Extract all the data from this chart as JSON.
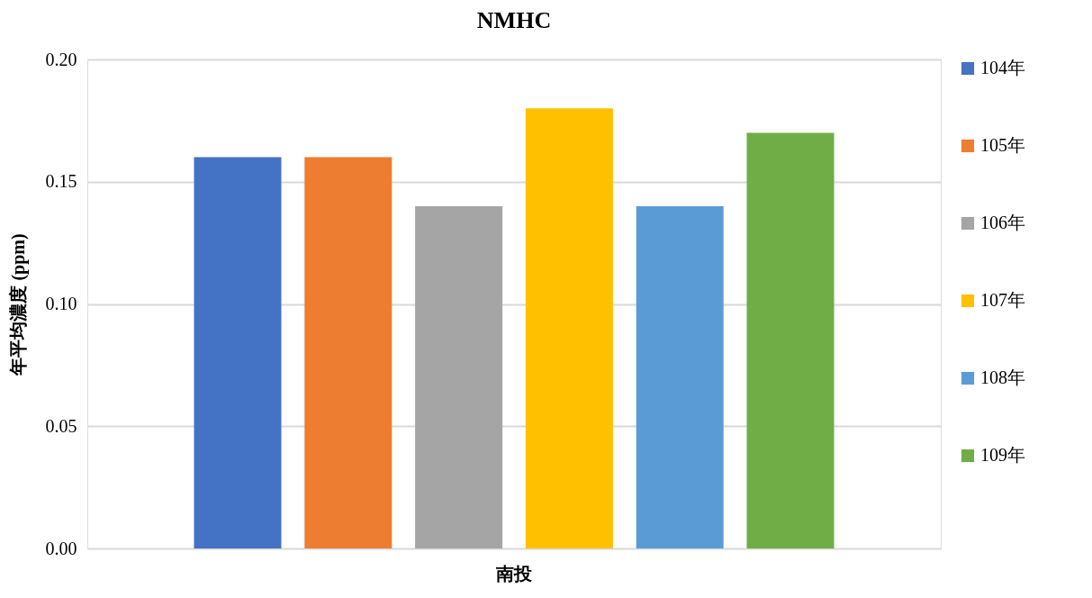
{
  "chart_data": {
    "type": "bar",
    "title": "NMHC",
    "ylabel": "年平均濃度 (ppm)",
    "categories": [
      "南投"
    ],
    "series": [
      {
        "name": "104年",
        "color": "#4472c4",
        "values": [
          0.16
        ]
      },
      {
        "name": "105年",
        "color": "#ed7d31",
        "values": [
          0.16
        ]
      },
      {
        "name": "106年",
        "color": "#a5a5a5",
        "values": [
          0.14
        ]
      },
      {
        "name": "107年",
        "color": "#ffc000",
        "values": [
          0.18
        ]
      },
      {
        "name": "108年",
        "color": "#5b9bd5",
        "values": [
          0.14
        ]
      },
      {
        "name": "109年",
        "color": "#70ad47",
        "values": [
          0.17
        ]
      }
    ],
    "ylim": [
      0,
      0.2
    ],
    "yticks": [
      {
        "value": 0,
        "label": "0.00"
      },
      {
        "value": 0.05,
        "label": "0.05"
      },
      {
        "value": 0.1,
        "label": "0.10"
      },
      {
        "value": 0.15,
        "label": "0.15"
      },
      {
        "value": 0.2,
        "label": "0.20"
      }
    ],
    "grid": "y",
    "legend": "right"
  }
}
